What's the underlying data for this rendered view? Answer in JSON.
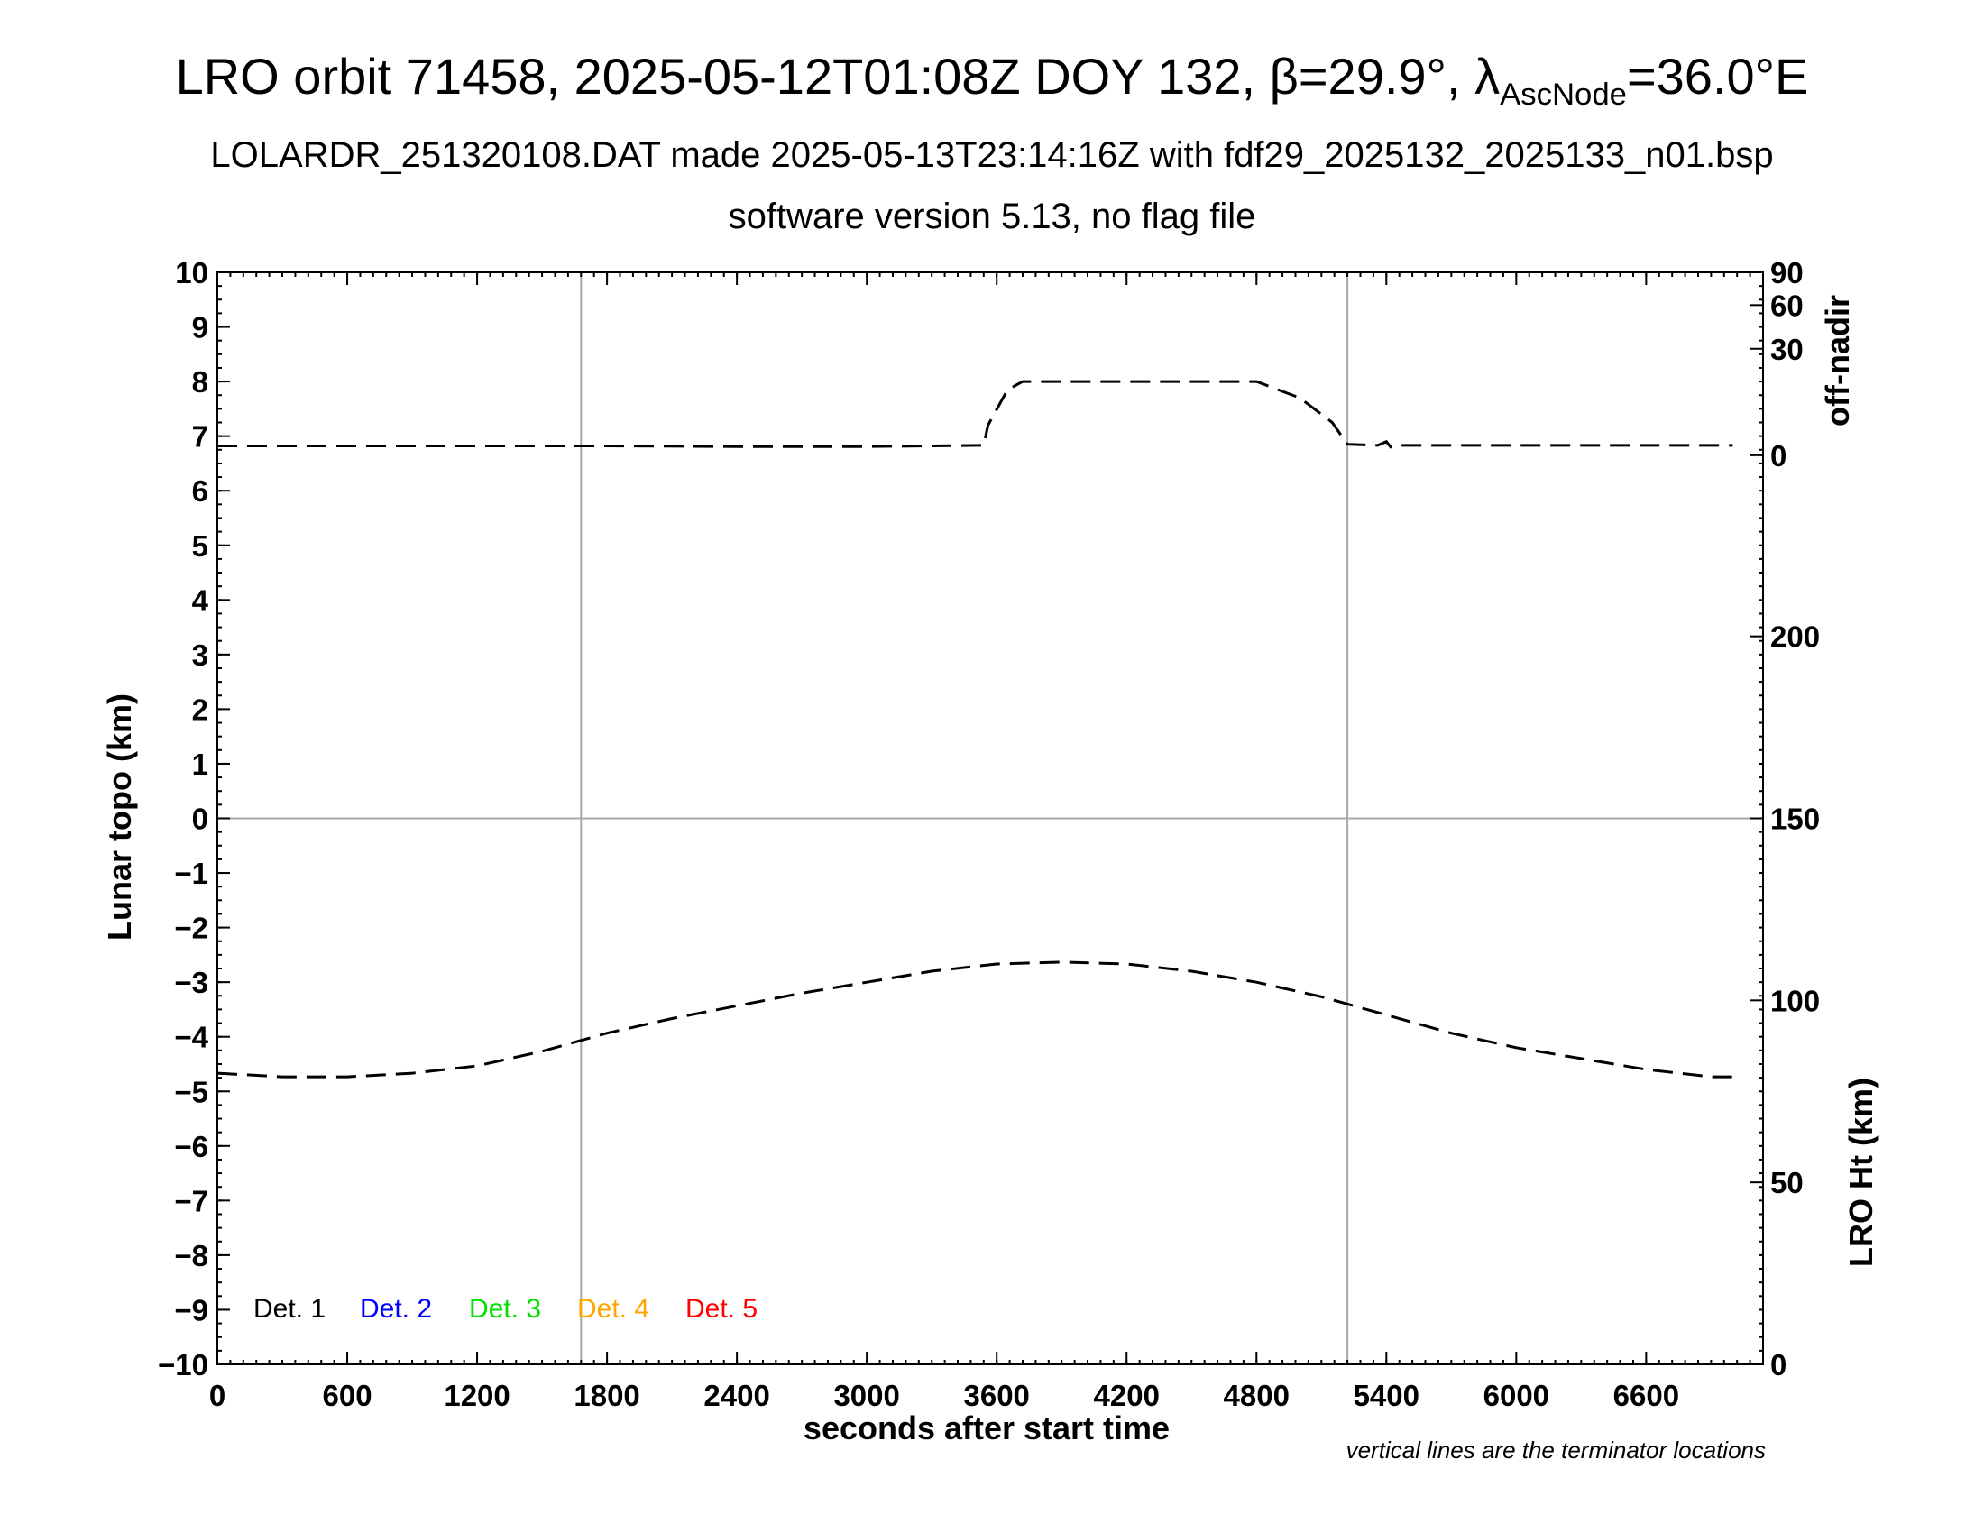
{
  "header": {
    "title_prefix": "LRO orbit 71458, 2025-05-12T01:08Z DOY 132, β=29.9°, λ",
    "title_sub": "AscNode",
    "title_suffix": "=36.0°E",
    "subtitle": "LOLARDR_251320108.DAT made 2025-05-13T23:14:16Z with fdf29_2025132_2025133_n01.bsp",
    "subtitle2": "software version 5.13, no flag file"
  },
  "chart_data": {
    "type": "line",
    "xlabel": "seconds after start time",
    "ylabel_left": "Lunar topo (km)",
    "ylabel_right_top": "off-nadir",
    "ylabel_right_bottom": "LRO Ht (km)",
    "xlim": [
      0,
      7140
    ],
    "x_ticks": [
      "0",
      "600",
      "1200",
      "1800",
      "2400",
      "3000",
      "3600",
      "4200",
      "4800",
      "5400",
      "6000",
      "6600"
    ],
    "x_tick_values": [
      0,
      600,
      1200,
      1800,
      2400,
      3000,
      3600,
      4200,
      4800,
      5400,
      6000,
      6600
    ],
    "ylim_left": [
      -10,
      10
    ],
    "y_left_ticks": [
      "10",
      "9",
      "8",
      "7",
      "6",
      "5",
      "4",
      "3",
      "2",
      "1",
      "0",
      "−1",
      "−2",
      "−3",
      "−4",
      "−5",
      "−6",
      "−7",
      "−8",
      "−9",
      "−10"
    ],
    "y_left_tick_values": [
      10,
      9,
      8,
      7,
      6,
      5,
      4,
      3,
      2,
      1,
      0,
      -1,
      -2,
      -3,
      -4,
      -5,
      -6,
      -7,
      -8,
      -9,
      -10
    ],
    "off_nadir_ticks": [
      "90",
      "60",
      "30",
      "0"
    ],
    "off_nadir_tick_values": [
      10,
      9.4,
      8.6,
      6.65
    ],
    "lro_ht_ticks": [
      "200",
      "150",
      "100",
      "50",
      "0"
    ],
    "lro_ht_tick_values": [
      200,
      150,
      100,
      50,
      0
    ],
    "lro_ht_range": [
      0,
      300
    ],
    "terminator_lines_x": [
      1680,
      5220
    ],
    "grid": false,
    "series": [
      {
        "key": "off_nadir",
        "style": "dashed",
        "color": "#000000",
        "x": [
          0,
          600,
          1200,
          1800,
          2400,
          3000,
          3300,
          3540,
          3560,
          3650,
          3720,
          4200,
          4600,
          4800,
          5000,
          5150,
          5220,
          5360,
          5400,
          5420,
          5460,
          6000,
          6600,
          7000
        ],
        "y": [
          6.82,
          6.82,
          6.82,
          6.82,
          6.81,
          6.81,
          6.82,
          6.83,
          7.2,
          7.85,
          8.0,
          8.0,
          8.0,
          8.0,
          7.7,
          7.25,
          6.85,
          6.83,
          6.9,
          6.8,
          6.83,
          6.83,
          6.83,
          6.83
        ]
      },
      {
        "key": "lro_height",
        "style": "dashed",
        "color": "#000000",
        "x": [
          0,
          300,
          600,
          900,
          1200,
          1500,
          1800,
          2100,
          2400,
          2700,
          3000,
          3300,
          3600,
          3900,
          4200,
          4500,
          4800,
          5100,
          5400,
          5700,
          6000,
          6300,
          6600,
          6900,
          7000
        ],
        "y": [
          80,
          79,
          79,
          80,
          82,
          86,
          91,
          95,
          98.5,
          102,
          105,
          108,
          110,
          110.5,
          110,
          108,
          105,
          101,
          96,
          91,
          87,
          84,
          81,
          79,
          79
        ]
      }
    ],
    "legend": [
      {
        "label": "Det. 1",
        "color": "#000000"
      },
      {
        "label": "Det. 2",
        "color": "#0000ff"
      },
      {
        "label": "Det. 3",
        "color": "#00e000"
      },
      {
        "label": "Det. 4",
        "color": "#ffa500"
      },
      {
        "label": "Det. 5",
        "color": "#ff0000"
      }
    ],
    "legend_position": "bottom-left",
    "note": "vertical lines are the terminator locations"
  }
}
